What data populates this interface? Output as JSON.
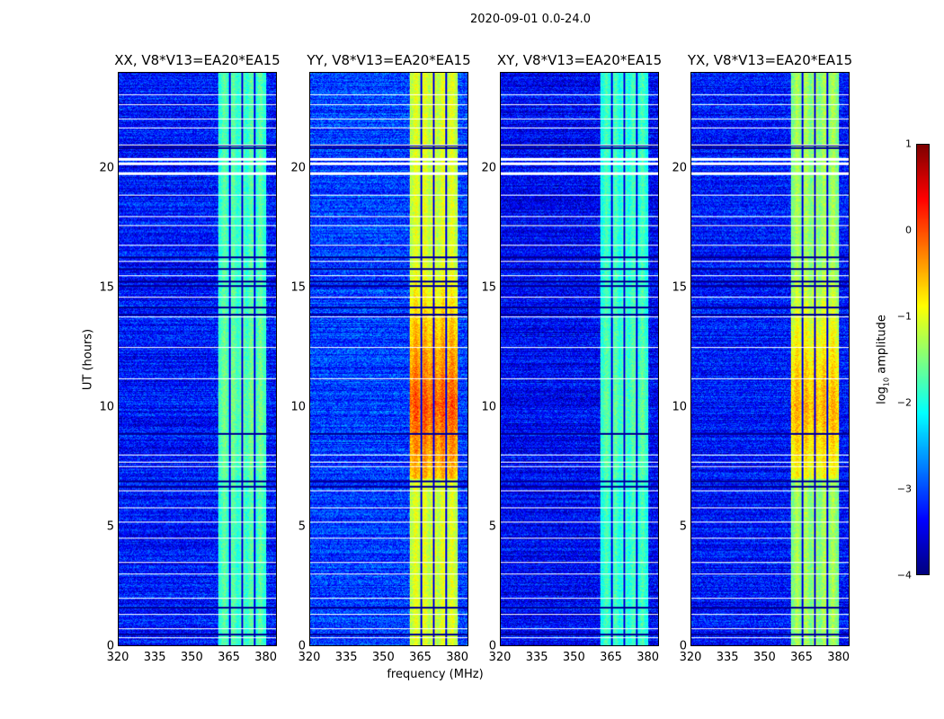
{
  "chart_data": {
    "type": "heatmap",
    "title": "2020-09-01 0.0-24.0",
    "xlabel": "frequency (MHz)",
    "ylabel": "UT (hours)",
    "xlim": [
      320,
      384.5
    ],
    "ylim": [
      0,
      24
    ],
    "xticks": [
      "320",
      "335",
      "350",
      "365",
      "380"
    ],
    "xtick_values": [
      320,
      335,
      350,
      365,
      380
    ],
    "yticks": [
      "0",
      "5",
      "10",
      "15",
      "20"
    ],
    "ytick_values": [
      0,
      5,
      10,
      15,
      20
    ],
    "colorbar": {
      "label": "log10 amplitude",
      "label_main": "log",
      "label_sub": "10",
      "label_rest": " amplitude",
      "range": [
        -4,
        1
      ],
      "ticks": [
        "1",
        "0",
        "−1",
        "−2",
        "−3",
        "−4"
      ],
      "tick_values": [
        1,
        0,
        -1,
        -2,
        -3,
        -4
      ],
      "colormap": "jet"
    },
    "rfi_band_mhz": [
      360.7,
      380.2
    ],
    "band_gaps_mhz": [
      365.5,
      370.6,
      375.6
    ],
    "flagged_rows_hours": [
      0.34,
      0.7,
      1.3,
      2.0,
      3.0,
      3.5,
      4.5,
      5.2,
      5.8,
      6.5,
      7.5,
      7.7,
      8.0,
      11.2,
      12.5,
      13.8,
      14.6,
      15.5,
      16.1,
      16.8,
      17.6,
      18.0,
      18.9,
      19.8,
      20.2,
      20.4,
      21.0,
      21.7,
      22.1,
      22.7,
      23.1
    ],
    "dark_rows_hours": [
      0.5,
      1.6,
      6.7,
      6.9,
      8.9,
      13.9,
      14.2,
      15.1,
      15.3,
      15.8,
      16.3,
      21.0,
      20.9
    ],
    "panels": [
      {
        "title": "XX, V8*V13=EA20*EA15",
        "background_level": -3.3,
        "band_level": -1.8,
        "hot_level": -1.6
      },
      {
        "title": "YY, V8*V13=EA20*EA15",
        "background_level": -3.1,
        "band_level": -1.1,
        "hot_level": 0.2
      },
      {
        "title": "XY, V8*V13=EA20*EA15",
        "background_level": -3.4,
        "band_level": -1.9,
        "hot_level": -1.7
      },
      {
        "title": "YX, V8*V13=EA20*EA15",
        "background_level": -3.3,
        "band_level": -1.4,
        "hot_level": -0.3
      }
    ]
  }
}
